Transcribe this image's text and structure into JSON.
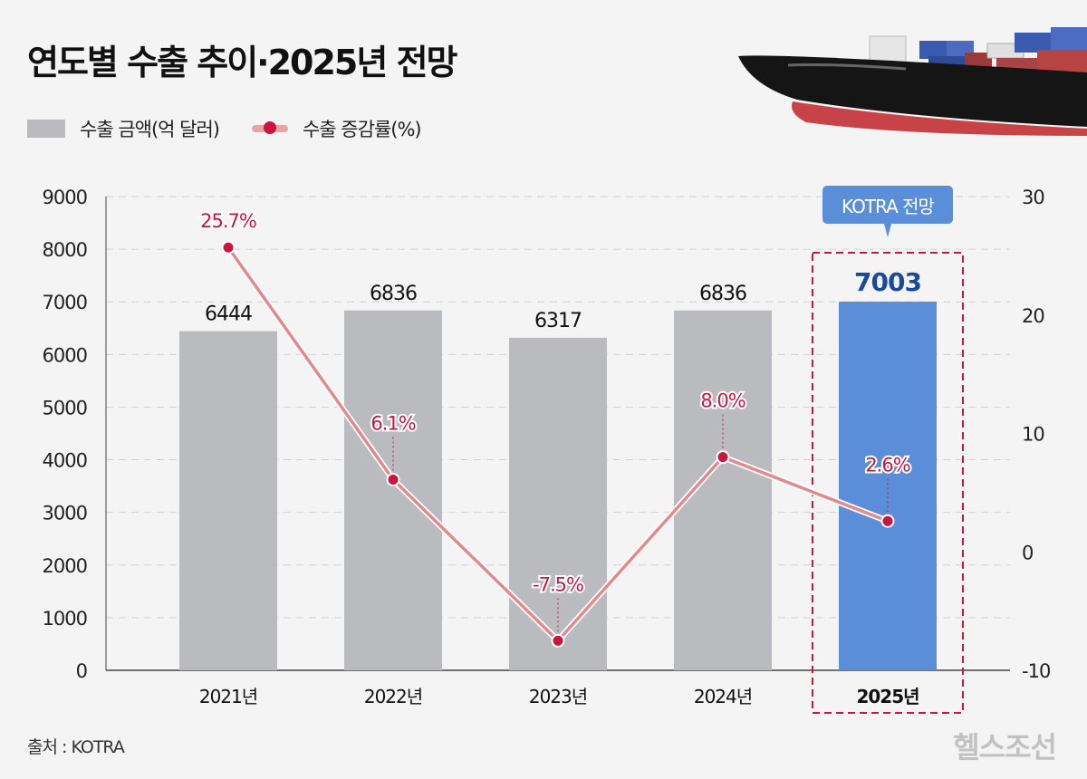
{
  "title": "연도별 수출 추이·2025년 전망",
  "legend": {
    "bar": "수출 금액(억 달러)",
    "line": "수출 증감률(%)"
  },
  "source": "출처 : KOTRA",
  "brand": "헬스조선",
  "callout": "KOTRA 전망",
  "colors": {
    "bar": "#b9bbbf",
    "highlight_bar": "#5b8ed8",
    "line": "#e08a8e",
    "point": "#c8163f",
    "label_red": "#c8163f",
    "label_blue": "#1a4a9a",
    "highlight_box": "#c8163f"
  },
  "chart_data": {
    "type": "bar",
    "categories": [
      "2021년",
      "2022년",
      "2023년",
      "2024년",
      "2025년"
    ],
    "series": [
      {
        "name": "수출 금액(억 달러)",
        "type": "bar",
        "axis": "left",
        "values": [
          6444,
          6836,
          6317,
          6836,
          7003
        ],
        "labels": [
          "6444",
          "6836",
          "6317",
          "6836",
          "7003"
        ]
      },
      {
        "name": "수출 증감률(%)",
        "type": "line",
        "axis": "right",
        "values": [
          25.7,
          6.1,
          -7.5,
          8.0,
          2.6
        ],
        "labels": [
          "25.7%",
          "6.1%",
          "-7.5%",
          "8.0%",
          "2.6%"
        ]
      }
    ],
    "left_axis": {
      "ylim": [
        0,
        9000
      ],
      "ticks": [
        "0",
        "1000",
        "2000",
        "3000",
        "4000",
        "5000",
        "6000",
        "7000",
        "8000",
        "9000"
      ]
    },
    "right_axis": {
      "ylim": [
        -10,
        30
      ],
      "ticks": [
        "-10",
        "0",
        "10",
        "20",
        "30"
      ]
    },
    "highlight_category": "2025년",
    "grid": "horizontal dashed",
    "legend_placement": "top-left"
  }
}
